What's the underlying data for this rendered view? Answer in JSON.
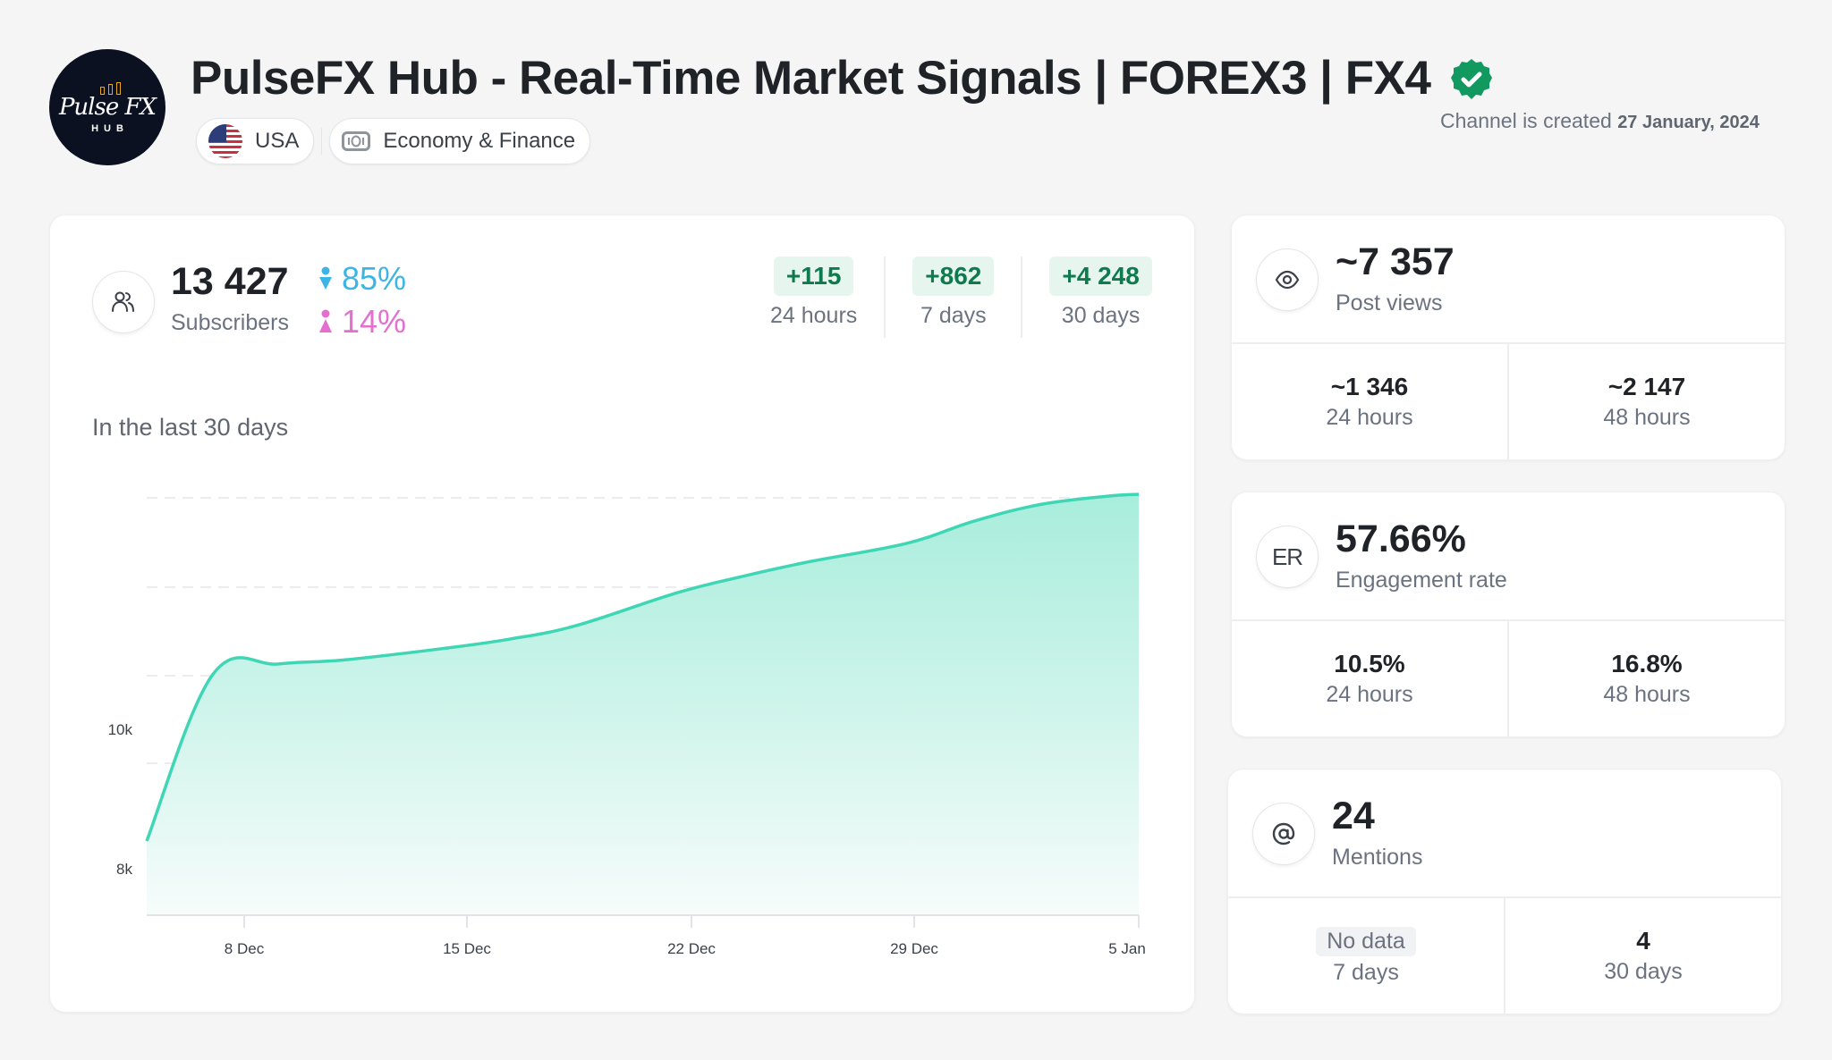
{
  "header": {
    "logo_text": "Pulse FX",
    "logo_subtext": "HUB",
    "title": "PulseFX Hub - Real-Time Market Signals | FOREX3 | FX4",
    "verified": true,
    "chips": [
      {
        "icon": "us-flag-icon",
        "label": "USA"
      },
      {
        "icon": "money-icon",
        "label": "Economy & Finance"
      }
    ],
    "created_prefix": "Channel is created",
    "created_date": "27 January, 2024"
  },
  "subscribers": {
    "value": "13 427",
    "label": "Subscribers",
    "male_pct": "85%",
    "female_pct": "14%",
    "deltas": [
      {
        "value": "+115",
        "label": "24 hours"
      },
      {
        "value": "+862",
        "label": "7 days"
      },
      {
        "value": "+4 248",
        "label": "30 days"
      }
    ],
    "chart_title": "In the last 30 days"
  },
  "post_views": {
    "value": "~7 357",
    "label": "Post views",
    "cells": [
      {
        "value": "~1 346",
        "label": "24 hours"
      },
      {
        "value": "~2 147",
        "label": "48 hours"
      }
    ]
  },
  "engagement": {
    "icon_text": "ER",
    "value": "57.66%",
    "label": "Engagement rate",
    "cells": [
      {
        "value": "10.5%",
        "label": "24 hours"
      },
      {
        "value": "16.8%",
        "label": "48 hours"
      }
    ]
  },
  "mentions": {
    "value": "24",
    "label": "Mentions",
    "cells": [
      {
        "value": "No data",
        "label": "7 days",
        "empty": true
      },
      {
        "value": "4",
        "label": "30 days"
      }
    ]
  },
  "colors": {
    "accent_line": "#3fd6b5",
    "male": "#3cb5e5",
    "female": "#e46fcf",
    "delta_green": "#0f7a4d",
    "verified_green": "#12995f"
  },
  "chart_data": {
    "type": "area",
    "title": "In the last 30 days",
    "xlabel": "",
    "ylabel": "Subscribers",
    "x_tick_labels": [
      "8 Dec",
      "15 Dec",
      "22 Dec",
      "29 Dec",
      "5 Jan"
    ],
    "y_tick_labels": [
      "10k",
      "8k"
    ],
    "grid": "horizontal dashed",
    "x": [
      "6 Dec",
      "8 Dec",
      "10 Dec",
      "12 Dec",
      "15 Dec",
      "17 Dec",
      "19 Dec",
      "22 Dec",
      "24 Dec",
      "26 Dec",
      "29 Dec",
      "31 Dec",
      "2 Jan",
      "4 Jan",
      "5 Jan"
    ],
    "values": [
      9180,
      10780,
      10880,
      10920,
      11030,
      11120,
      11250,
      11560,
      11720,
      11860,
      12040,
      12250,
      12410,
      12490,
      12510
    ],
    "series": [
      {
        "name": "Subscribers",
        "values": [
          9180,
          10780,
          10880,
          10920,
          11030,
          11120,
          11250,
          11560,
          11720,
          11860,
          12040,
          12250,
          12410,
          12490,
          12510
        ]
      }
    ]
  }
}
